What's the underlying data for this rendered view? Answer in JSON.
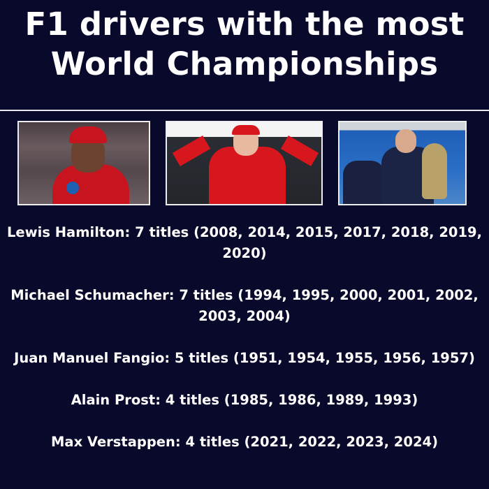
{
  "title": "F1 drivers with the most World Championships",
  "photos": [
    {
      "label": "Lewis Hamilton photo"
    },
    {
      "label": "Michael Schumacher photo"
    },
    {
      "label": "Max Verstappen photo"
    }
  ],
  "drivers": [
    {
      "text": "Lewis Hamilton: 7 titles (2008, 2014, 2015, 2017, 2018, 2019, 2020)"
    },
    {
      "text": "Michael Schumacher: 7 titles (1994, 1995, 2000, 2001, 2002, 2003, 2004)"
    },
    {
      "text": "Juan Manuel Fangio: 5 titles (1951, 1954, 1955, 1956, 1957)"
    },
    {
      "text": "Alain Prost: 4 titles (1985, 1986, 1989, 1993)"
    },
    {
      "text": "Max Verstappen: 4 titles (2021, 2022, 2023, 2024)"
    }
  ],
  "colors": {
    "background": "#09092b",
    "text": "#ffffff"
  }
}
